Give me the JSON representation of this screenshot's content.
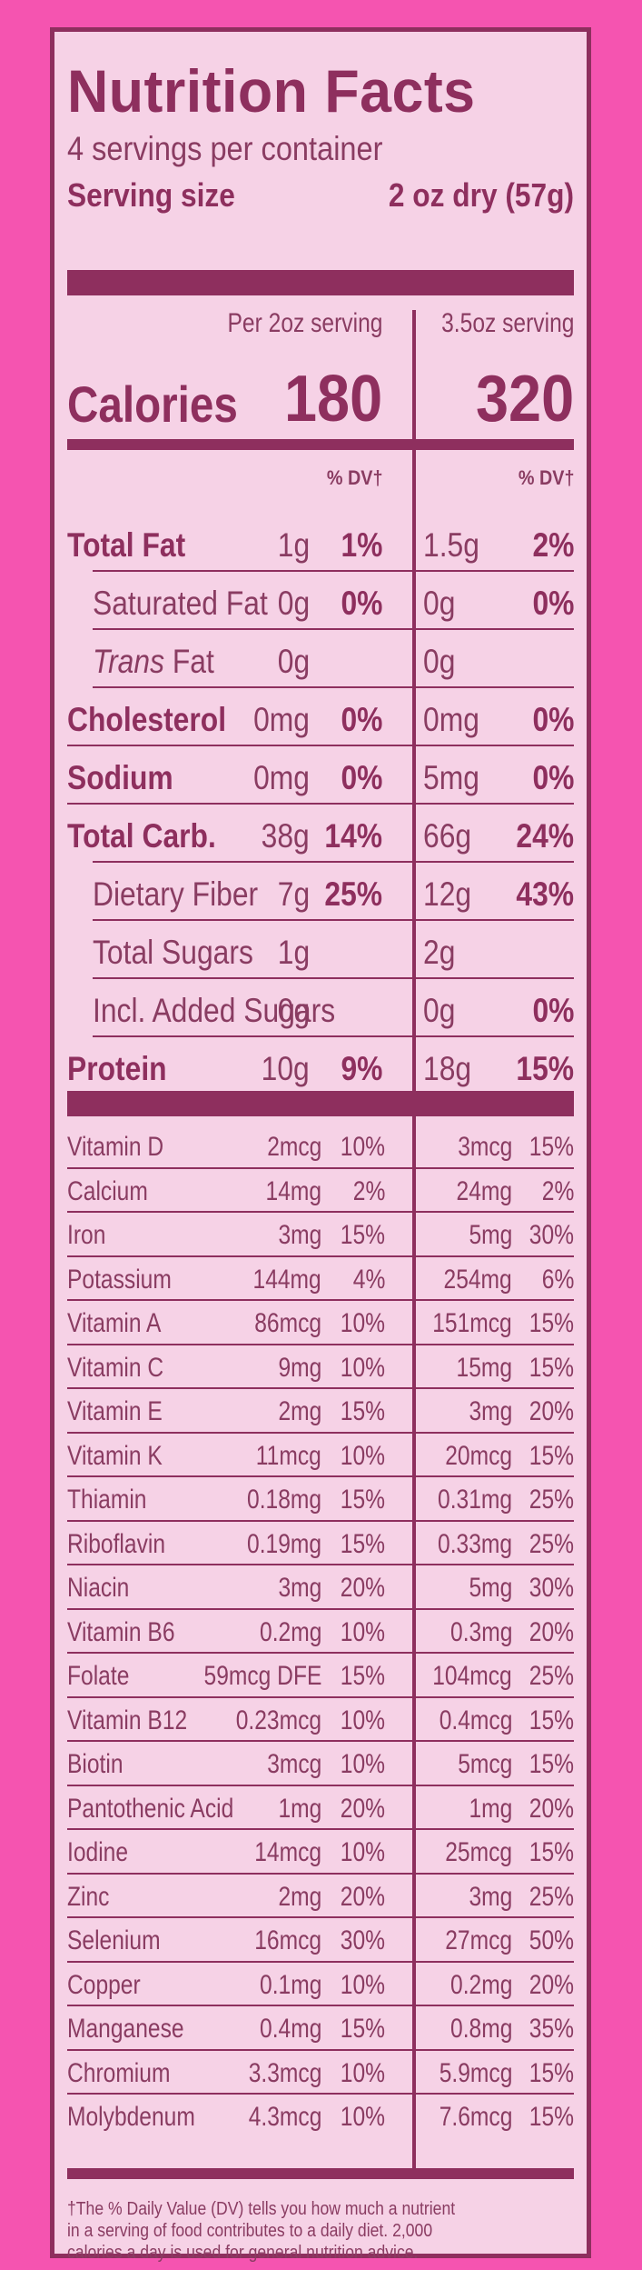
{
  "title": "Nutrition Facts",
  "servings_per_container": "4 servings per container",
  "serving_size_label": "Serving size",
  "serving_size_value": "2 oz dry (57g)",
  "col1_header": "Per 2oz serving",
  "col2_header": "3.5oz serving",
  "calories_label": "Calories",
  "calories_1": "180",
  "calories_2": "320",
  "dv_header": "% DV†",
  "main_rows": [
    {
      "label": "Total Fat",
      "bold": true,
      "indent": 0,
      "italic_prefix": "",
      "a1": "1g",
      "p1": "1%",
      "a2": "1.5g",
      "p2": "2%"
    },
    {
      "label": "Saturated Fat",
      "bold": false,
      "indent": 1,
      "italic_prefix": "",
      "a1": "0g",
      "p1": "0%",
      "a2": "0g",
      "p2": "0%"
    },
    {
      "label": " Fat",
      "bold": false,
      "indent": 1,
      "italic_prefix": "Trans",
      "a1": "0g",
      "p1": "",
      "a2": "0g",
      "p2": ""
    },
    {
      "label": "Cholesterol",
      "bold": true,
      "indent": 0,
      "italic_prefix": "",
      "a1": "0mg",
      "p1": "0%",
      "a2": "0mg",
      "p2": "0%"
    },
    {
      "label": "Sodium",
      "bold": true,
      "indent": 0,
      "italic_prefix": "",
      "a1": "0mg",
      "p1": "0%",
      "a2": "5mg",
      "p2": "0%"
    },
    {
      "label": "Total Carb.",
      "bold": true,
      "indent": 0,
      "italic_prefix": "",
      "a1": "38g",
      "p1": "14%",
      "a2": "66g",
      "p2": "24%"
    },
    {
      "label": "Dietary Fiber",
      "bold": false,
      "indent": 1,
      "italic_prefix": "",
      "a1": "7g",
      "p1": "25%",
      "a2": "12g",
      "p2": "43%"
    },
    {
      "label": "Total Sugars",
      "bold": false,
      "indent": 1,
      "italic_prefix": "",
      "a1": "1g",
      "p1": "",
      "a2": "2g",
      "p2": ""
    },
    {
      "label": "Incl. Added Sugars",
      "bold": false,
      "indent": 1,
      "italic_prefix": "",
      "a1": "0g",
      "p1": "",
      "a2": "0g",
      "p2": "0%"
    },
    {
      "label": "Protein",
      "bold": true,
      "indent": 0,
      "italic_prefix": "",
      "a1": "10g",
      "p1": "9%",
      "a2": "18g",
      "p2": "15%"
    }
  ],
  "vitamins": [
    {
      "name": "Vitamin D",
      "a1": "2mcg",
      "p1": "10%",
      "a2": "3mcg",
      "p2": "15%"
    },
    {
      "name": "Calcium",
      "a1": "14mg",
      "p1": "2%",
      "a2": "24mg",
      "p2": "2%"
    },
    {
      "name": "Iron",
      "a1": "3mg",
      "p1": "15%",
      "a2": "5mg",
      "p2": "30%"
    },
    {
      "name": "Potassium",
      "a1": "144mg",
      "p1": "4%",
      "a2": "254mg",
      "p2": "6%"
    },
    {
      "name": "Vitamin A",
      "a1": "86mcg",
      "p1": "10%",
      "a2": "151mcg",
      "p2": "15%"
    },
    {
      "name": "Vitamin C",
      "a1": "9mg",
      "p1": "10%",
      "a2": "15mg",
      "p2": "15%"
    },
    {
      "name": "Vitamin E",
      "a1": "2mg",
      "p1": "15%",
      "a2": "3mg",
      "p2": "20%"
    },
    {
      "name": "Vitamin K",
      "a1": "11mcg",
      "p1": "10%",
      "a2": "20mcg",
      "p2": "15%"
    },
    {
      "name": "Thiamin",
      "a1": "0.18mg",
      "p1": "15%",
      "a2": "0.31mg",
      "p2": "25%"
    },
    {
      "name": "Riboflavin",
      "a1": "0.19mg",
      "p1": "15%",
      "a2": "0.33mg",
      "p2": "25%"
    },
    {
      "name": "Niacin",
      "a1": "3mg",
      "p1": "20%",
      "a2": "5mg",
      "p2": "30%"
    },
    {
      "name": "Vitamin B6",
      "a1": "0.2mg",
      "p1": "10%",
      "a2": "0.3mg",
      "p2": "20%"
    },
    {
      "name": "Folate",
      "a1": "59mcg DFE",
      "p1": "15%",
      "a2": "104mcg",
      "p2": "25%"
    },
    {
      "name": "Vitamin B12",
      "a1": "0.23mcg",
      "p1": "10%",
      "a2": "0.4mcg",
      "p2": "15%"
    },
    {
      "name": "Biotin",
      "a1": "3mcg",
      "p1": "10%",
      "a2": "5mcg",
      "p2": "15%"
    },
    {
      "name": "Pantothenic Acid",
      "a1": "1mg",
      "p1": "20%",
      "a2": "1mg",
      "p2": "20%"
    },
    {
      "name": "Iodine",
      "a1": "14mcg",
      "p1": "10%",
      "a2": "25mcg",
      "p2": "15%"
    },
    {
      "name": "Zinc",
      "a1": "2mg",
      "p1": "20%",
      "a2": "3mg",
      "p2": "25%"
    },
    {
      "name": "Selenium",
      "a1": "16mcg",
      "p1": "30%",
      "a2": "27mcg",
      "p2": "50%"
    },
    {
      "name": "Copper",
      "a1": "0.1mg",
      "p1": "10%",
      "a2": "0.2mg",
      "p2": "20%"
    },
    {
      "name": "Manganese",
      "a1": "0.4mg",
      "p1": "15%",
      "a2": "0.8mg",
      "p2": "35%"
    },
    {
      "name": "Chromium",
      "a1": "3.3mcg",
      "p1": "10%",
      "a2": "5.9mcg",
      "p2": "15%"
    },
    {
      "name": "Molybdenum",
      "a1": "4.3mcg",
      "p1": "10%",
      "a2": "7.6mcg",
      "p2": "15%"
    }
  ],
  "footnote": [
    "†The % Daily Value (DV) tells you how much a nutrient",
    "in a serving of  food contributes to a daily diet. 2,000",
    "calories a day is used for general nutrition advice."
  ],
  "colors": {
    "background": "#f554b0",
    "label_bg": "#f6d2e6",
    "ink": "#8e2f5e",
    "text": "#8a3c62"
  }
}
